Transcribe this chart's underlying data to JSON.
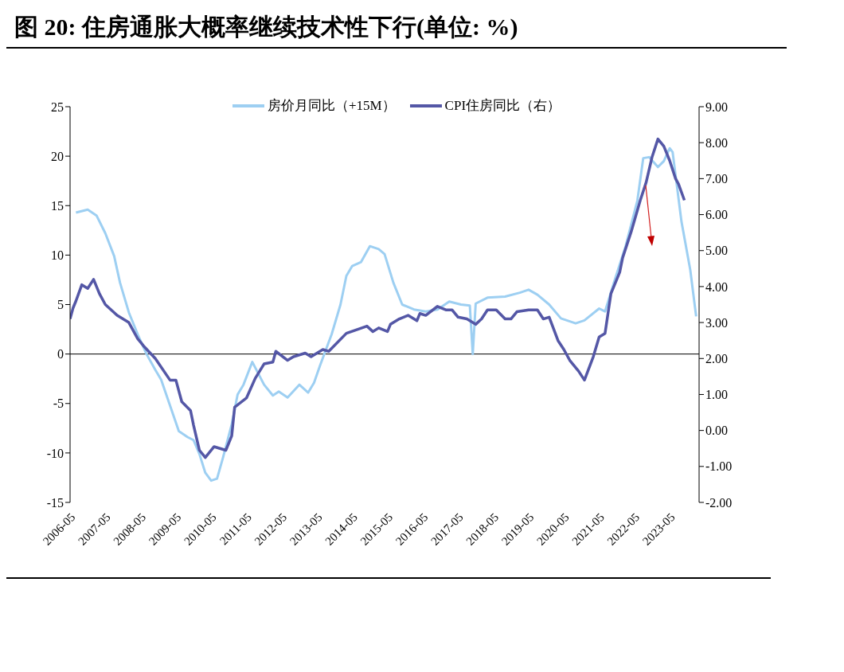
{
  "chart_data": {
    "type": "line",
    "title": "图 20: 住房通胀大概率继续技术性下行(单位: %)",
    "xlim": [
      "2006-05",
      "2024-03"
    ],
    "xticks": [
      "2006-05",
      "2007-05",
      "2008-05",
      "2009-05",
      "2010-05",
      "2011-05",
      "2012-05",
      "2013-05",
      "2014-05",
      "2015-05",
      "2016-05",
      "2017-05",
      "2018-05",
      "2019-05",
      "2020-05",
      "2021-05",
      "2022-05",
      "2023-05"
    ],
    "ylim": [
      -15,
      25
    ],
    "yticks": [
      -15,
      -10,
      -5,
      0,
      5,
      10,
      15,
      20,
      25
    ],
    "y2lim": [
      -2,
      9
    ],
    "y2ticks": [
      {
        "value": -2,
        "label": "-2.00"
      },
      {
        "value": -1,
        "label": "-1.00"
      },
      {
        "value": 0,
        "label": "0.00"
      },
      {
        "value": 1,
        "label": "1.00"
      },
      {
        "value": 2,
        "label": "2.00"
      },
      {
        "value": 3,
        "label": "3.00"
      },
      {
        "value": 4,
        "label": "4.00"
      },
      {
        "value": 5,
        "label": "5.00"
      },
      {
        "value": 6,
        "label": "6.00"
      },
      {
        "value": 7,
        "label": "7.00"
      },
      {
        "value": 8,
        "label": "8.00"
      },
      {
        "value": 9,
        "label": "9.00"
      }
    ],
    "ref_lines": [
      {
        "axis": "y",
        "value": 0,
        "color": "#000000"
      }
    ],
    "legend": "top",
    "grid": false,
    "marker": "none",
    "series": [
      {
        "name": "房价月同比（+15M）",
        "color": "#9dcff2",
        "x": [
          "2006-07",
          "2006-11",
          "2007-02",
          "2007-05",
          "2007-08",
          "2007-10",
          "2008-01",
          "2008-04",
          "2008-07",
          "2008-10",
          "2008-12",
          "2009-03",
          "2009-06",
          "2009-09",
          "2009-11",
          "2010-01",
          "2010-03",
          "2010-05",
          "2010-07",
          "2010-09",
          "2010-12",
          "2011-02",
          "2011-04",
          "2011-07",
          "2011-11",
          "2012-02",
          "2012-04",
          "2012-07",
          "2012-11",
          "2013-02",
          "2013-04",
          "2013-06",
          "2013-10",
          "2014-01",
          "2014-03",
          "2014-05",
          "2014-08",
          "2014-11",
          "2015-02",
          "2015-04",
          "2015-07",
          "2015-10",
          "2016-02",
          "2016-06",
          "2016-10",
          "2017-02",
          "2017-06",
          "2017-09",
          "2017-10",
          "2017-11",
          "2018-03",
          "2018-09",
          "2019-02",
          "2019-05",
          "2019-08",
          "2019-12",
          "2020-04",
          "2020-09",
          "2020-12",
          "2021-05",
          "2021-07",
          "2021-10",
          "2022-02",
          "2022-06",
          "2022-08",
          "2022-10",
          "2023-01",
          "2023-03",
          "2023-05",
          "2023-06",
          "2023-09",
          "2023-12",
          "2024-02"
        ],
        "values": [
          14.3,
          14.6,
          14.0,
          12.2,
          9.9,
          7.2,
          4.2,
          2.0,
          0,
          -1.6,
          -2.6,
          -5.2,
          -7.8,
          -8.4,
          -8.7,
          -10.1,
          -12.0,
          -12.8,
          -12.6,
          -10.5,
          -7.1,
          -4.1,
          -3.1,
          -0.8,
          -3.1,
          -4.2,
          -3.8,
          -4.4,
          -3.1,
          -3.9,
          -2.9,
          -1.2,
          2.0,
          5.0,
          7.9,
          8.9,
          9.3,
          10.9,
          10.6,
          10.1,
          7.2,
          5.0,
          4.5,
          4.3,
          4.5,
          5.3,
          5.0,
          4.9,
          0,
          5.1,
          5.7,
          5.8,
          6.2,
          6.5,
          6.0,
          5.0,
          3.6,
          3.1,
          3.4,
          4.6,
          4.3,
          7.2,
          10.9,
          15.5,
          19.8,
          19.9,
          18.9,
          19.5,
          20.8,
          20.4,
          13.4,
          8.5,
          3.8
        ]
      },
      {
        "name": "CPI住房同比（右）",
        "color": "#5457a6",
        "axis": "y2",
        "x": [
          "2006-05",
          "2006-06",
          "2006-07",
          "2006-09",
          "2006-11",
          "2007-01",
          "2007-03",
          "2007-05",
          "2007-09",
          "2007-11",
          "2008-01",
          "2008-02",
          "2008-04",
          "2008-06",
          "2008-10",
          "2009-03",
          "2009-05",
          "2009-07",
          "2009-10",
          "2009-11",
          "2010-01",
          "2010-03",
          "2010-06",
          "2010-10",
          "2010-12",
          "2011-01",
          "2011-05",
          "2011-08",
          "2011-11",
          "2012-02",
          "2012-03",
          "2012-07",
          "2012-09",
          "2013-01",
          "2013-03",
          "2013-07",
          "2013-09",
          "2014-03",
          "2014-10",
          "2014-12",
          "2015-02",
          "2015-05",
          "2015-06",
          "2015-09",
          "2015-12",
          "2016-03",
          "2016-04",
          "2016-06",
          "2016-10",
          "2017-01",
          "2017-03",
          "2017-05",
          "2017-08",
          "2017-11",
          "2018-01",
          "2018-03",
          "2018-06",
          "2018-09",
          "2018-11",
          "2019-01",
          "2019-05",
          "2019-08",
          "2019-10",
          "2019-12",
          "2020-03",
          "2020-05",
          "2020-07",
          "2020-10",
          "2020-12",
          "2021-03",
          "2021-05",
          "2021-07",
          "2021-09",
          "2021-12",
          "2022-01",
          "2022-04",
          "2022-07",
          "2022-09",
          "2022-11",
          "2023-01",
          "2023-03",
          "2023-05",
          "2023-07",
          "2023-08",
          "2023-10"
        ],
        "values": [
          3.1,
          3.4,
          3.6,
          4.05,
          3.95,
          4.2,
          3.8,
          3.5,
          3.2,
          3.1,
          3.0,
          2.85,
          2.55,
          2.35,
          2.0,
          1.4,
          1.4,
          0.8,
          0.55,
          0.15,
          -0.55,
          -0.75,
          -0.45,
          -0.55,
          -0.15,
          0.65,
          0.9,
          1.45,
          1.85,
          1.9,
          2.2,
          1.95,
          2.05,
          2.15,
          2.05,
          2.25,
          2.2,
          2.7,
          2.9,
          2.75,
          2.85,
          2.75,
          2.95,
          3.1,
          3.2,
          3.05,
          3.25,
          3.2,
          3.45,
          3.35,
          3.35,
          3.15,
          3.1,
          2.95,
          3.1,
          3.35,
          3.35,
          3.1,
          3.1,
          3.3,
          3.35,
          3.35,
          3.1,
          3.15,
          2.5,
          2.25,
          1.95,
          1.65,
          1.4,
          2.05,
          2.6,
          2.7,
          3.8,
          4.4,
          4.8,
          5.55,
          6.4,
          6.9,
          7.6,
          8.1,
          7.9,
          7.5,
          7.0,
          6.85,
          6.4
        ]
      }
    ]
  }
}
